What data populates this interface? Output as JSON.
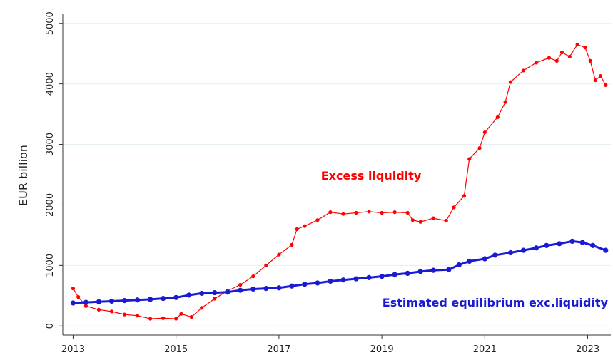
{
  "chart_data": {
    "type": "line",
    "ylabel": "EUR billion",
    "xlim": [
      2012.8,
      2023.45
    ],
    "xticks": [
      2013,
      2015,
      2017,
      2019,
      2021,
      2023
    ],
    "ylim": [
      -150,
      5150
    ],
    "yticks": [
      0,
      1000,
      2000,
      3000,
      4000,
      5000
    ],
    "grid": true,
    "series": [
      {
        "name": "Excess liquidity",
        "color": "#ff0000",
        "x": [
          2013.0,
          2013.1,
          2013.25,
          2013.5,
          2013.75,
          2014.0,
          2014.25,
          2014.5,
          2014.75,
          2015.0,
          2015.1,
          2015.3,
          2015.5,
          2015.75,
          2016.0,
          2016.25,
          2016.5,
          2016.75,
          2017.0,
          2017.25,
          2017.35,
          2017.5,
          2017.75,
          2018.0,
          2018.25,
          2018.5,
          2018.75,
          2019.0,
          2019.25,
          2019.5,
          2019.6,
          2019.75,
          2020.0,
          2020.25,
          2020.4,
          2020.6,
          2020.7,
          2020.9,
          2021.0,
          2021.25,
          2021.4,
          2021.5,
          2021.75,
          2022.0,
          2022.25,
          2022.4,
          2022.5,
          2022.65,
          2022.8,
          2022.95,
          2023.05,
          2023.15,
          2023.25,
          2023.35
        ],
        "values": [
          620,
          480,
          330,
          270,
          240,
          190,
          170,
          120,
          130,
          120,
          200,
          150,
          300,
          450,
          580,
          680,
          820,
          1000,
          1180,
          1340,
          1600,
          1650,
          1750,
          1880,
          1850,
          1870,
          1890,
          1870,
          1880,
          1870,
          1750,
          1720,
          1780,
          1740,
          1960,
          2150,
          2760,
          2940,
          3200,
          3450,
          3700,
          4030,
          4220,
          4350,
          4430,
          4380,
          4520,
          4450,
          4650,
          4600,
          4380,
          4060,
          4130,
          3980
        ]
      },
      {
        "name": "Estimated equilibrium exc.liquidity",
        "color": "#1a1ad4",
        "x": [
          2013.0,
          2013.25,
          2013.5,
          2013.75,
          2014.0,
          2014.25,
          2014.5,
          2014.75,
          2015.0,
          2015.25,
          2015.5,
          2015.75,
          2016.0,
          2016.25,
          2016.5,
          2016.75,
          2017.0,
          2017.25,
          2017.5,
          2017.75,
          2018.0,
          2018.25,
          2018.5,
          2018.75,
          2019.0,
          2019.25,
          2019.5,
          2019.75,
          2020.0,
          2020.3,
          2020.5,
          2020.7,
          2021.0,
          2021.2,
          2021.5,
          2021.75,
          2022.0,
          2022.2,
          2022.45,
          2022.7,
          2022.9,
          2023.1,
          2023.35
        ],
        "values": [
          380,
          390,
          400,
          410,
          420,
          430,
          440,
          455,
          470,
          510,
          540,
          550,
          560,
          590,
          610,
          620,
          630,
          660,
          690,
          710,
          740,
          760,
          780,
          800,
          820,
          850,
          870,
          900,
          920,
          930,
          1010,
          1070,
          1110,
          1170,
          1210,
          1250,
          1290,
          1330,
          1360,
          1400,
          1380,
          1330,
          1250
        ]
      }
    ]
  }
}
